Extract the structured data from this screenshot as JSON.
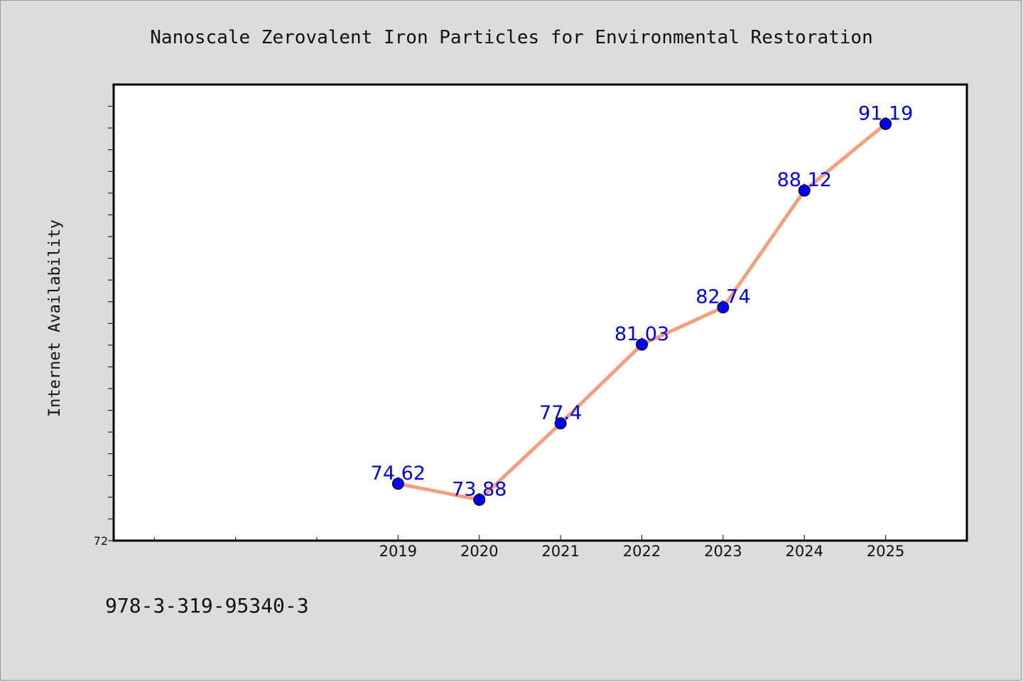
{
  "footer": {
    "isbn": "978-3-319-95340-3"
  },
  "chart_data": {
    "type": "line",
    "title": "Nanoscale Zerovalent Iron Particles for Environmental Restoration",
    "ylabel": "Internet Availability",
    "xlabel": "",
    "x": [
      2019,
      2020,
      2021,
      2022,
      2023,
      2024,
      2025
    ],
    "x_tick_labels": [
      "2019",
      "2020",
      "2021",
      "2022",
      "2023",
      "2024",
      "2025"
    ],
    "xlim": [
      2015.5,
      2026.0
    ],
    "ylim": [
      72,
      93
    ],
    "y_tick_labels_shown": [
      "72"
    ],
    "series": [
      {
        "values": [
          74.62,
          73.88,
          77.4,
          81.03,
          82.74,
          88.12,
          91.19
        ],
        "labels": [
          "74.62",
          "73.88",
          "77.4",
          "81.03",
          "82.74",
          "88.12",
          "91.19"
        ],
        "line_color": "#f4a07c",
        "marker_color": "#0000ee"
      }
    ],
    "grid": false,
    "legend": "none"
  }
}
